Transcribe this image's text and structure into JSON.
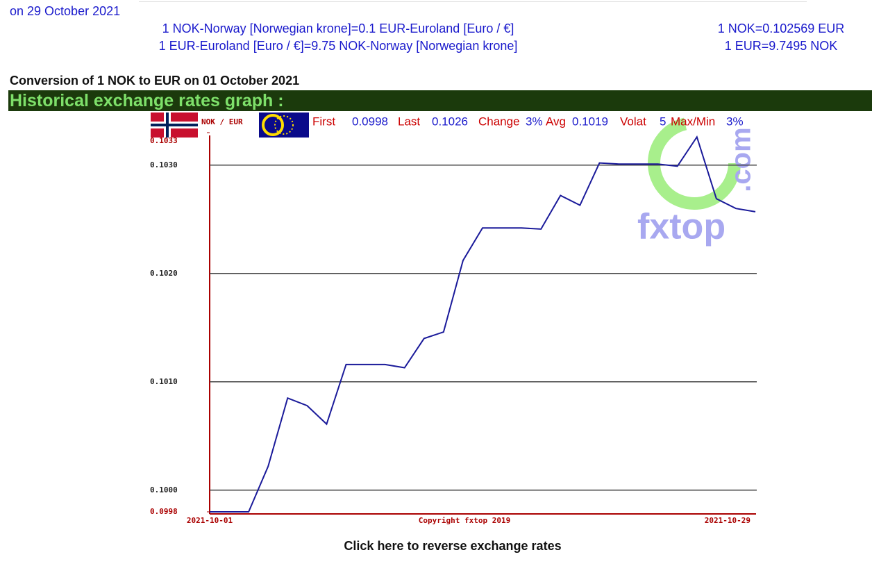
{
  "header": {
    "date": "on 29 October 2021",
    "rate_left": [
      "1 NOK-Norway [Norwegian krone]=0.1 EUR-Euroland [Euro / €]",
      "1 EUR-Euroland [Euro / €]=9.75 NOK-Norway [Norwegian krone]"
    ],
    "rate_right": [
      "1 NOK=0.102569 EUR",
      "1 EUR=9.7495 NOK"
    ],
    "conversion": "Conversion of 1 NOK to EUR on 01 October 2021",
    "section": "Historical exchange rates graph :"
  },
  "chart_data": {
    "type": "line",
    "pair": "NOK / EUR",
    "stats": [
      {
        "label": "First",
        "value": "0.0998"
      },
      {
        "label": "Last",
        "value": "0.1026"
      },
      {
        "label": "Change",
        "value": "3%"
      },
      {
        "label": "Avg",
        "value": "0.1019"
      },
      {
        "label": "Volat",
        "value": "5"
      },
      {
        "label": "Max/Min",
        "value": "3%"
      }
    ],
    "categories": [
      "2021-10-01",
      null,
      null,
      null,
      null,
      null,
      null,
      null,
      null,
      null,
      null,
      null,
      null,
      null,
      null,
      null,
      null,
      null,
      null,
      null,
      null,
      null,
      null,
      null,
      null,
      null,
      null,
      null,
      "2021-10-29"
    ],
    "series": [
      {
        "name": "NOK / EUR",
        "color": "#1a1a9a",
        "values": [
          0.0998,
          0.0998,
          0.0998,
          0.10022,
          0.10085,
          0.10078,
          0.10061,
          0.10116,
          0.10116,
          0.10116,
          0.10113,
          0.1014,
          0.10146,
          0.10212,
          0.10242,
          0.10242,
          0.10242,
          0.10241,
          0.10272,
          0.10263,
          0.10302,
          0.10301,
          0.10301,
          0.10301,
          0.10299,
          0.10326,
          0.10269,
          0.1026,
          0.10257
        ]
      }
    ],
    "ylim": [
      0.0998,
      0.1033
    ],
    "yticks": [
      0.0998,
      {
        "value": 0.1,
        "label": "0.1000"
      },
      {
        "value": 0.101,
        "label": "0.1010"
      },
      {
        "value": 0.102,
        "label": "0.1020"
      },
      {
        "value": 0.103,
        "label": "0.1030"
      },
      0.1033
    ],
    "grid": true,
    "copyright": "Copyright fxtop 2019",
    "watermark": [
      "fxtop",
      ".com"
    ]
  },
  "footer": {
    "link": "Click here to reverse exchange rates"
  }
}
